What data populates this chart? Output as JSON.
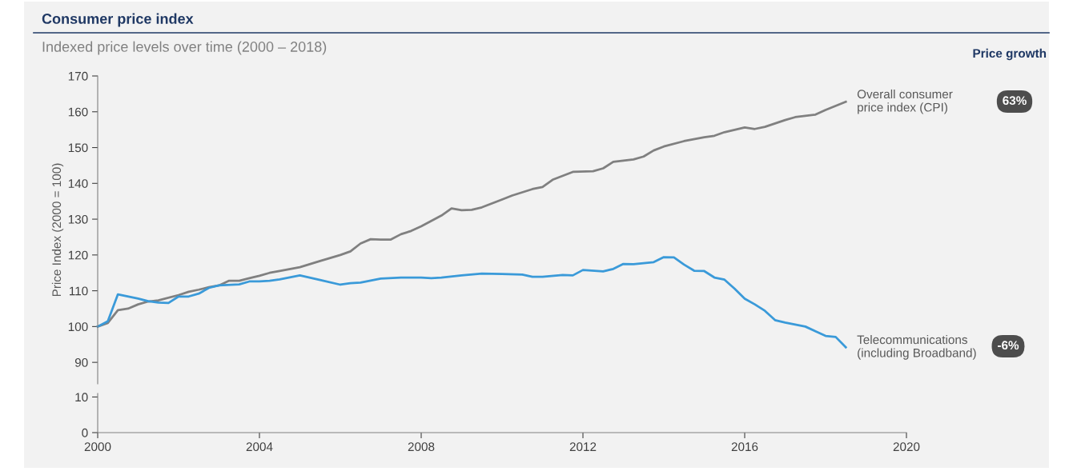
{
  "chart_data": [
    {
      "type": "line",
      "title": "Consumer price index",
      "subtitle": "Indexed price levels over time (2000 – 2018)",
      "ylabel": "Price Index (2000 = 100)",
      "xlim": [
        2000,
        2020
      ],
      "xticks": [
        2000,
        2004,
        2008,
        2012,
        2016,
        2020
      ],
      "ylim": [
        84,
        170
      ],
      "yticks": [
        90,
        100,
        110,
        120,
        130,
        140,
        150,
        160,
        170
      ],
      "tick_labels": "y",
      "grid": false,
      "marker": "none",
      "line_style": "solid",
      "annotations": [
        "Price growth",
        "63%",
        "-6%"
      ],
      "series": [
        {
          "name": "Overall consumer\nprice index (CPI)",
          "color": "#808080",
          "x": [
            2000,
            2000.25,
            2000.5,
            2000.75,
            2001,
            2001.25,
            2001.5,
            2002,
            2002.25,
            2002.5,
            2002.75,
            2003,
            2003.25,
            2003.5,
            2003.75,
            2004,
            2004.25,
            2004.5,
            2005,
            2005.5,
            2006,
            2006.25,
            2006.5,
            2006.75,
            2007,
            2007.25,
            2007.5,
            2007.75,
            2008,
            2008.5,
            2008.75,
            2009,
            2009.25,
            2009.5,
            2010,
            2010.25,
            2010.75,
            2011,
            2011.25,
            2011.75,
            2012.25,
            2012.5,
            2012.75,
            2013.25,
            2013.5,
            2013.75,
            2014,
            2014.5,
            2015,
            2015.25,
            2015.5,
            2016,
            2016.25,
            2016.5,
            2017,
            2017.25,
            2017.75,
            2018,
            2018.5
          ],
          "values": [
            100,
            101,
            104.6,
            105,
            106.2,
            107,
            107.3,
            108.8,
            109.7,
            110.3,
            111,
            111.5,
            112.8,
            112.8,
            113.5,
            114.2,
            115,
            115.5,
            116.6,
            118.3,
            120,
            121,
            123.2,
            124.4,
            124.3,
            124.3,
            125.8,
            126.7,
            128,
            131,
            133,
            132.5,
            132.6,
            133.3,
            135.5,
            136.6,
            138.4,
            139,
            141,
            143.2,
            143.4,
            144.2,
            146,
            146.7,
            147.5,
            149.2,
            150.3,
            151.8,
            152.9,
            153.3,
            154.3,
            155.6,
            155.2,
            155.8,
            157.7,
            158.5,
            159.2,
            160.5,
            162.8
          ]
        },
        {
          "name": "Telecommunications\n(including Broadband)",
          "color": "#3a9ad9",
          "x": [
            2000,
            2000.25,
            2000.5,
            2001,
            2001.25,
            2001.5,
            2001.75,
            2002,
            2002.25,
            2002.5,
            2002.75,
            2003,
            2003.5,
            2003.75,
            2004,
            2004.25,
            2004.5,
            2005,
            2005.5,
            2006,
            2006.25,
            2006.5,
            2007,
            2007.5,
            2008,
            2008.25,
            2008.5,
            2009,
            2009.5,
            2010,
            2010.5,
            2010.75,
            2011,
            2011.5,
            2011.75,
            2012,
            2012.5,
            2012.75,
            2013,
            2013.25,
            2013.75,
            2014,
            2014.25,
            2014.5,
            2014.75,
            2015,
            2015.25,
            2015.5,
            2015.75,
            2016,
            2016.25,
            2016.5,
            2016.75,
            2017,
            2017.5,
            2017.75,
            2018,
            2018.25,
            2018.5
          ],
          "values": [
            100,
            101.5,
            109,
            107.8,
            107.1,
            106.7,
            106.6,
            108.4,
            108.4,
            109.2,
            110.8,
            111.5,
            111.8,
            112.6,
            112.6,
            112.8,
            113.2,
            114.3,
            113,
            111.7,
            112.1,
            112.3,
            113.4,
            113.7,
            113.7,
            113.5,
            113.7,
            114.3,
            114.8,
            114.7,
            114.5,
            113.9,
            113.9,
            114.4,
            114.3,
            115.8,
            115.4,
            116.1,
            117.5,
            117.4,
            118,
            119.4,
            119.3,
            117.3,
            115.6,
            115.5,
            113.7,
            113.1,
            110.6,
            107.8,
            106.2,
            104.4,
            101.8,
            101.1,
            100,
            98.7,
            97.4,
            97.1,
            94.2
          ]
        }
      ]
    },
    {
      "type": "line",
      "xlim": [
        2000,
        2020
      ],
      "xticks": [
        2000,
        2004,
        2008,
        2012,
        2016,
        2020
      ],
      "ylim": [
        0,
        11
      ],
      "yticks": [
        0,
        10
      ]
    }
  ]
}
